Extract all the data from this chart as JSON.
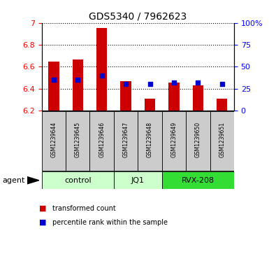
{
  "title": "GDS5340 / 7962623",
  "samples": [
    "GSM1239644",
    "GSM1239645",
    "GSM1239646",
    "GSM1239647",
    "GSM1239648",
    "GSM1239649",
    "GSM1239650",
    "GSM1239651"
  ],
  "bar_values": [
    6.645,
    6.665,
    6.95,
    6.465,
    6.31,
    6.455,
    6.43,
    6.31
  ],
  "bar_base": 6.2,
  "percentile_values": [
    35,
    35,
    40,
    30,
    30,
    32,
    32,
    30
  ],
  "ylim_left": [
    6.2,
    7.0
  ],
  "ylim_right": [
    0,
    100
  ],
  "yticks_left": [
    6.2,
    6.4,
    6.6,
    6.8,
    7.0
  ],
  "ytick_labels_left": [
    "6.2",
    "6.4",
    "6.6",
    "6.8",
    "7"
  ],
  "yticks_right": [
    0,
    25,
    50,
    75,
    100
  ],
  "ytick_labels_right": [
    "0",
    "25",
    "50",
    "75",
    "100%"
  ],
  "groups": [
    {
      "label": "control",
      "start": 0,
      "end": 2,
      "color": "#ccffcc"
    },
    {
      "label": "JQ1",
      "start": 3,
      "end": 4,
      "color": "#ccffcc"
    },
    {
      "label": "RVX-208",
      "start": 5,
      "end": 7,
      "color": "#33dd33"
    }
  ],
  "bar_color": "#cc0000",
  "dot_color": "#0000cc",
  "cell_color": "#cccccc",
  "agent_label": "agent",
  "bar_width": 0.45
}
